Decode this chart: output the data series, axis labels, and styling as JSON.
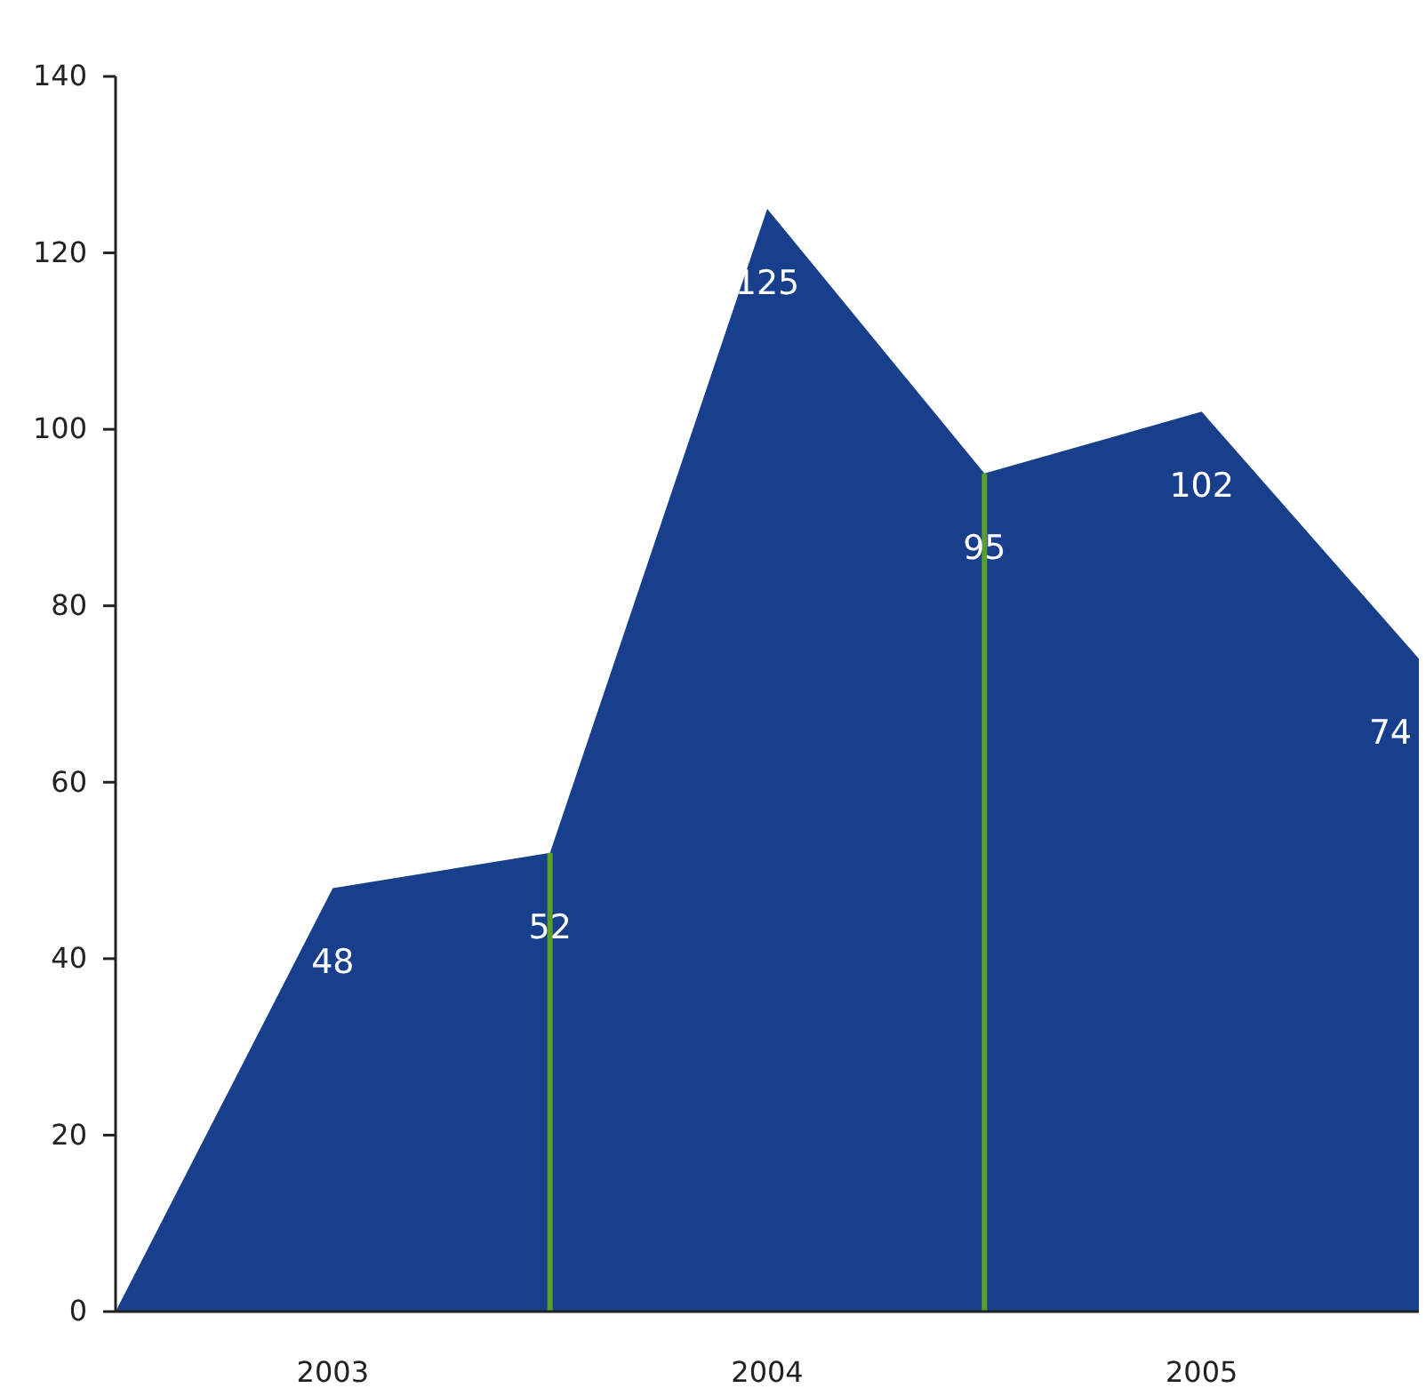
{
  "chart_data": {
    "type": "area",
    "x": [
      2003,
      2003.5,
      2004,
      2004.5,
      2005,
      2005.5,
      2006
    ],
    "values": [
      0,
      48,
      52,
      125,
      95,
      102,
      74
    ],
    "value_labels": [
      null,
      "48",
      "52",
      "125",
      "95",
      "102",
      "74"
    ],
    "color": "#173f8c",
    "xlim": [
      2003,
      2006
    ],
    "xticks": [
      {
        "value": 2003.5,
        "label": "2003"
      },
      {
        "value": 2004.5,
        "label": "2004"
      },
      {
        "value": 2005.5,
        "label": "2005"
      }
    ],
    "ylim": [
      0,
      140
    ],
    "yticks": [
      0,
      20,
      40,
      60,
      80,
      100,
      120,
      140
    ],
    "ref_lines": [
      {
        "axis": "x",
        "value": 2004,
        "color": "#5a9e2e"
      },
      {
        "axis": "x",
        "value": 2005,
        "color": "#5a9e2e"
      }
    ],
    "grid": false,
    "legend": false
  }
}
